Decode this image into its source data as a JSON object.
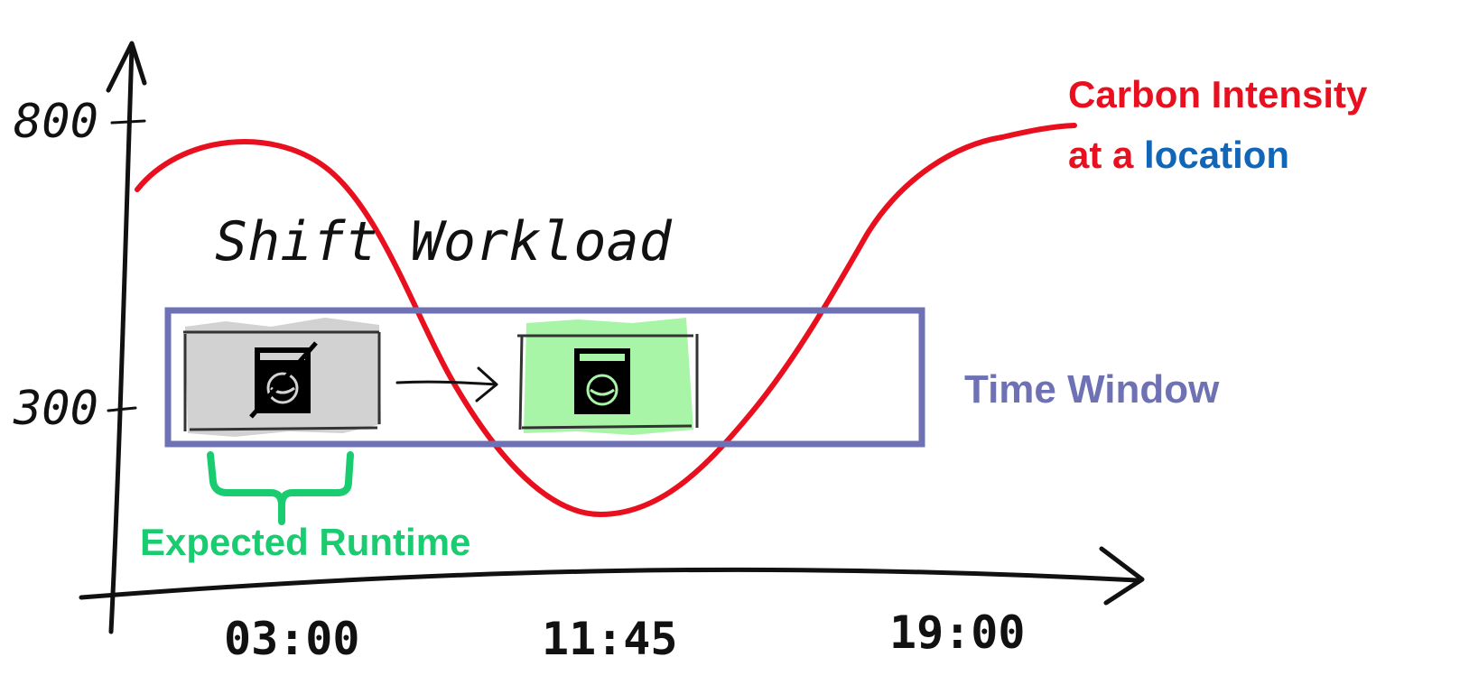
{
  "y_axis": {
    "ticks": [
      "800",
      "300"
    ]
  },
  "x_axis": {
    "ticks": [
      "03:00",
      "11:45",
      "19:00"
    ]
  },
  "carbon_label": {
    "line1": "Carbon Intensity",
    "line2_prefix": "at a ",
    "line2_highlight": "location"
  },
  "shift_label": "Shift Workload",
  "time_window_label": "Time Window",
  "runtime_label": "Expected Runtime",
  "colors": {
    "curve": "#e8101e",
    "location": "#1266b8",
    "time_window": "#6e72b4",
    "runtime": "#19cc70",
    "original_block": "#d2d2d2",
    "shifted_block": "#a8f5a8",
    "axis": "#111111"
  },
  "icons": {
    "original_workload": "washing-machine-crossed-icon",
    "shifted_workload": "washing-machine-icon"
  }
}
